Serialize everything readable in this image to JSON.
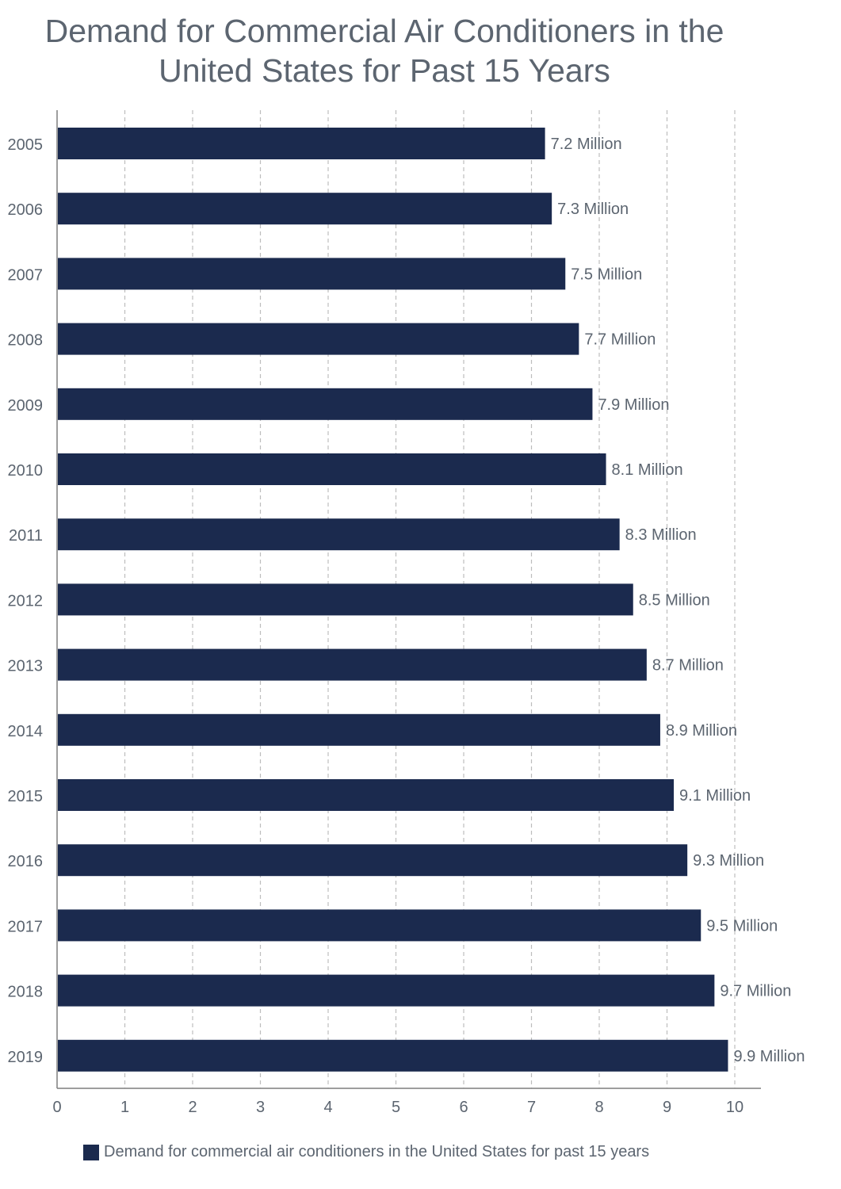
{
  "chart_data": {
    "type": "bar",
    "orientation": "horizontal",
    "title": "Demand for Commercial Air Conditioners in the United States for Past 15 Years",
    "categories": [
      "2005",
      "2006",
      "2007",
      "2008",
      "2009",
      "2010",
      "2011",
      "2012",
      "2013",
      "2014",
      "2015",
      "2016",
      "2017",
      "2018",
      "2019"
    ],
    "series": [
      {
        "name": "Demand for commercial air conditioners in the United States for past 15 years",
        "values": [
          7.2,
          7.3,
          7.5,
          7.7,
          7.9,
          8.1,
          8.3,
          8.5,
          8.7,
          8.9,
          9.1,
          9.3,
          9.5,
          9.7,
          9.9
        ],
        "labels": [
          "7.2 Million",
          "7.3 Million",
          "7.5 Million",
          "7.7 Million",
          "7.9 Million",
          "8.1 Million",
          "8.3 Million",
          "8.5 Million",
          "8.7 Million",
          "8.9 Million",
          "9.1 Million",
          "9.3 Million",
          "9.5 Million",
          "9.7 Million",
          "9.9 Million"
        ],
        "color": "#1b2a4e"
      }
    ],
    "xlim": [
      0,
      10.4
    ],
    "xticks": [
      "0",
      "1",
      "2",
      "3",
      "4",
      "5",
      "6",
      "7",
      "8",
      "9",
      "10"
    ],
    "xlabel": "",
    "ylabel": "",
    "grid": "vertical dashed",
    "legend_position": "bottom"
  }
}
